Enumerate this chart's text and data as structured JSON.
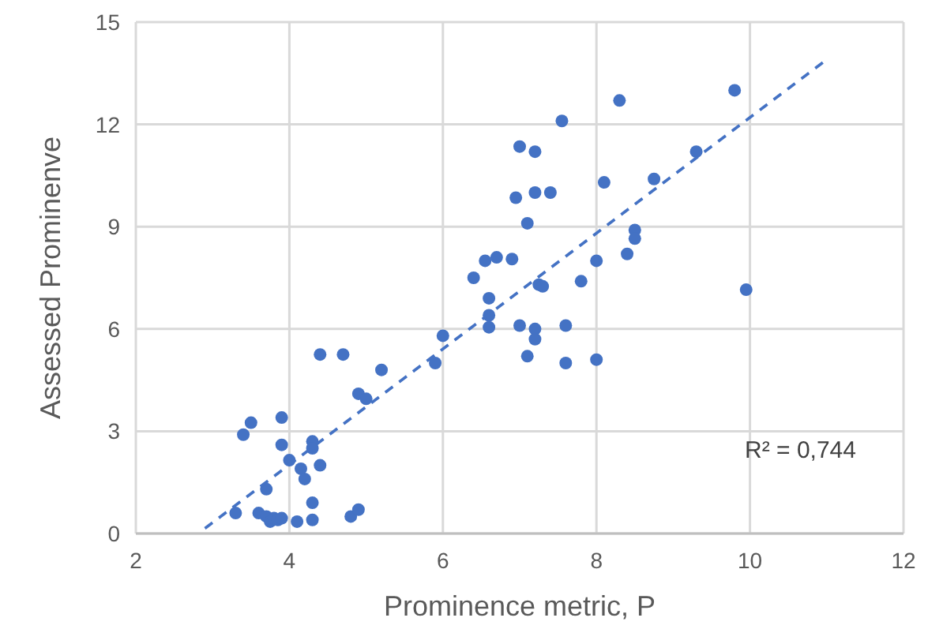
{
  "chart_data": {
    "type": "scatter",
    "xlabel": "Prominence metric, P",
    "ylabel": "Assessed Prominenve",
    "xlim": [
      2,
      12
    ],
    "xticks": [
      2,
      4,
      6,
      8,
      10,
      12
    ],
    "ylim": [
      0,
      15
    ],
    "yticks": [
      0,
      3,
      6,
      9,
      12,
      15
    ],
    "grid": true,
    "marker": "circle",
    "annotations": [
      "R² = 0,744"
    ],
    "series": [
      {
        "color": "#4472c4",
        "x": [
          3.3,
          3.4,
          3.5,
          3.6,
          3.7,
          3.7,
          3.75,
          3.8,
          3.85,
          3.9,
          3.9,
          3.9,
          4.0,
          4.1,
          4.15,
          4.2,
          4.3,
          4.3,
          4.3,
          4.3,
          4.4,
          4.4,
          4.7,
          4.8,
          4.9,
          4.9,
          5.0,
          5.2,
          5.9,
          6.0,
          6.4,
          6.55,
          6.6,
          6.6,
          6.6,
          6.7,
          6.9,
          6.95,
          7.0,
          7.0,
          7.1,
          7.1,
          7.2,
          7.2,
          7.2,
          7.2,
          7.25,
          7.3,
          7.4,
          7.55,
          7.6,
          7.6,
          7.8,
          8.0,
          8.0,
          8.1,
          8.3,
          8.4,
          8.5,
          8.5,
          8.75,
          9.3,
          9.8,
          9.95
        ],
        "values": [
          0.6,
          2.9,
          3.25,
          0.6,
          0.5,
          1.3,
          0.35,
          0.45,
          0.4,
          0.45,
          2.6,
          3.4,
          2.15,
          0.35,
          1.9,
          1.6,
          2.7,
          2.5,
          0.9,
          0.4,
          2.0,
          5.25,
          5.25,
          0.5,
          0.7,
          4.1,
          3.95,
          4.8,
          5.0,
          5.8,
          7.5,
          8.0,
          6.9,
          6.4,
          6.05,
          8.1,
          8.05,
          9.85,
          11.35,
          6.1,
          9.1,
          5.2,
          11.2,
          10.0,
          6.0,
          5.7,
          7.3,
          7.25,
          10.0,
          12.1,
          6.1,
          5.0,
          7.4,
          8.0,
          5.1,
          10.3,
          12.7,
          8.2,
          8.9,
          8.65,
          10.4,
          11.2,
          13.0,
          7.15
        ]
      },
      {
        "type": "line",
        "color": "#4472c4",
        "line_style": "dashed",
        "marker": "none",
        "x": [
          2.9,
          11
        ],
        "values": [
          0.15,
          13.9
        ]
      }
    ]
  }
}
